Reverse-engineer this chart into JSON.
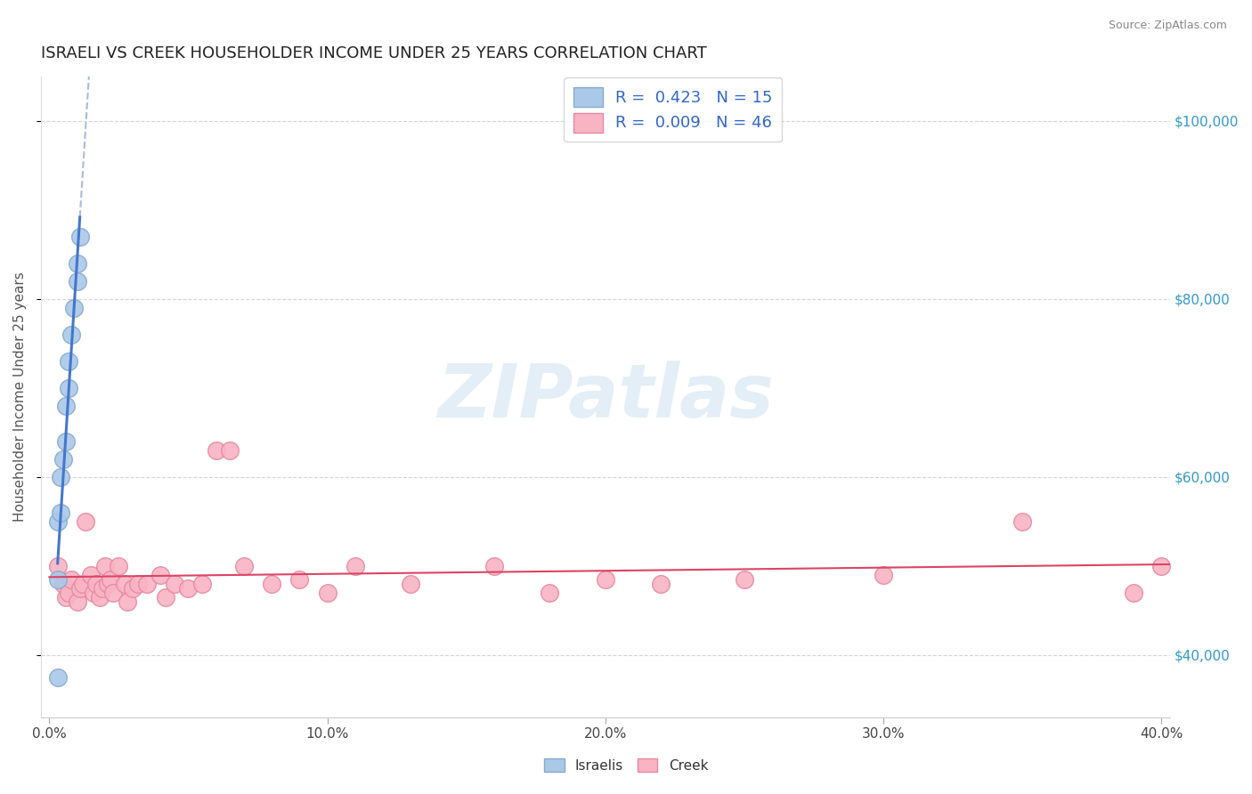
{
  "title": "ISRAELI VS CREEK HOUSEHOLDER INCOME UNDER 25 YEARS CORRELATION CHART",
  "source": "Source: ZipAtlas.com",
  "xlim": [
    -0.003,
    0.403
  ],
  "ylim": [
    33000,
    105000
  ],
  "ylabel": "Householder Income Under 25 years",
  "legend1_label": "R =  0.423   N = 15",
  "legend2_label": "R =  0.009   N = 46",
  "footer_label1": "Israelis",
  "footer_label2": "Creek",
  "blue_dot_color": "#aac8e8",
  "blue_dot_edge": "#88aacc",
  "pink_dot_color": "#f9b4c4",
  "pink_dot_edge": "#e888a0",
  "blue_line_color": "#4477cc",
  "pink_line_color": "#dd4466",
  "dash_color": "#aabbdd",
  "watermark": "ZIPatlas",
  "watermark_color": "#c8dff0",
  "israelis_x": [
    0.003,
    0.003,
    0.004,
    0.004,
    0.005,
    0.006,
    0.006,
    0.007,
    0.007,
    0.008,
    0.009,
    0.01,
    0.01,
    0.011,
    0.003
  ],
  "israelis_y": [
    48500,
    55000,
    56000,
    60000,
    62000,
    64000,
    68000,
    70000,
    73000,
    76000,
    79000,
    82000,
    84000,
    87000,
    37500
  ],
  "creek_x": [
    0.003,
    0.005,
    0.006,
    0.007,
    0.008,
    0.01,
    0.011,
    0.012,
    0.013,
    0.015,
    0.016,
    0.017,
    0.018,
    0.019,
    0.02,
    0.021,
    0.022,
    0.023,
    0.025,
    0.027,
    0.028,
    0.03,
    0.032,
    0.035,
    0.04,
    0.042,
    0.045,
    0.05,
    0.055,
    0.06,
    0.065,
    0.07,
    0.08,
    0.09,
    0.1,
    0.11,
    0.13,
    0.16,
    0.18,
    0.2,
    0.22,
    0.25,
    0.3,
    0.35,
    0.39,
    0.4
  ],
  "creek_y": [
    50000,
    48000,
    46500,
    47000,
    48500,
    46000,
    47500,
    48000,
    55000,
    49000,
    47000,
    48000,
    46500,
    47500,
    50000,
    48000,
    48500,
    47000,
    50000,
    48000,
    46000,
    47500,
    48000,
    48000,
    49000,
    46500,
    48000,
    47500,
    48000,
    63000,
    63000,
    50000,
    48000,
    48500,
    47000,
    50000,
    48000,
    50000,
    47000,
    48500,
    48000,
    48500,
    49000,
    55000,
    47000,
    50000
  ],
  "ytick_values": [
    40000,
    60000,
    80000,
    100000
  ],
  "ytick_labels": [
    "$40,000",
    "$60,000",
    "$80,000",
    "$100,000"
  ],
  "xtick_values": [
    0.0,
    0.1,
    0.2,
    0.3,
    0.4
  ],
  "xtick_labels": [
    "0.0%",
    "10.0%",
    "20.0%",
    "30.0%",
    "40.0%"
  ]
}
